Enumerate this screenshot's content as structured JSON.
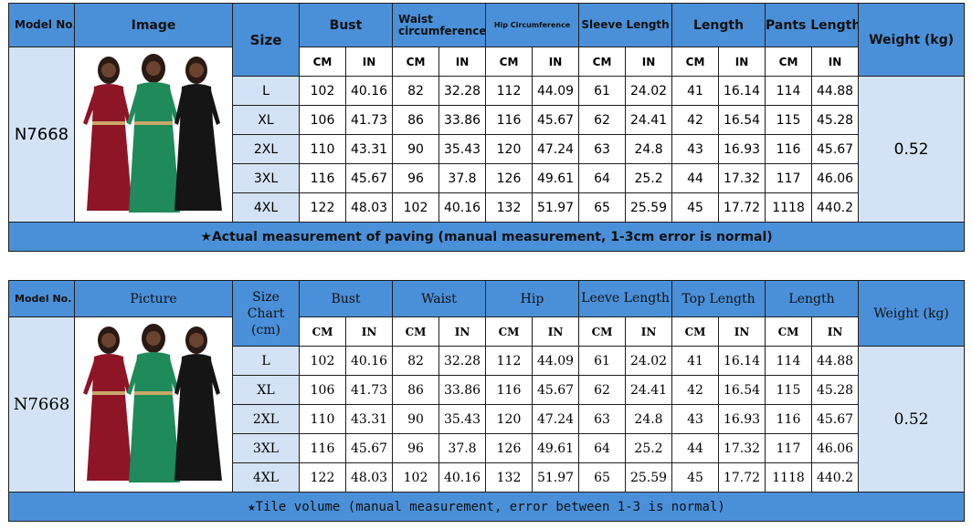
{
  "colors": {
    "header_blue": "#4a90d9",
    "light_blue": "#d3e3f5",
    "dress_red": "#8e1526",
    "dress_green": "#1f8a5a",
    "dress_black": "#151515"
  },
  "table1": {
    "model_label": "Model No.",
    "image_label": "Image",
    "size_label": "Size",
    "groups": [
      "Bust",
      "Waist circumference",
      "Hip Circumference",
      "Sleeve Length",
      "Length",
      "Pants Length"
    ],
    "weight_label": "Weight (kg)",
    "units": [
      "CM",
      "IN"
    ],
    "model": "N7668",
    "weight": "0.52",
    "rows": [
      {
        "size": "L",
        "cells": [
          "102",
          "40.16",
          "82",
          "32.28",
          "112",
          "44.09",
          "61",
          "24.02",
          "41",
          "16.14",
          "114",
          "44.88"
        ]
      },
      {
        "size": "XL",
        "cells": [
          "106",
          "41.73",
          "86",
          "33.86",
          "116",
          "45.67",
          "62",
          "24.41",
          "42",
          "16.54",
          "115",
          "45.28"
        ]
      },
      {
        "size": "2XL",
        "cells": [
          "110",
          "43.31",
          "90",
          "35.43",
          "120",
          "47.24",
          "63",
          "24.8",
          "43",
          "16.93",
          "116",
          "45.67"
        ]
      },
      {
        "size": "3XL",
        "cells": [
          "116",
          "45.67",
          "96",
          "37.8",
          "126",
          "49.61",
          "64",
          "25.2",
          "44",
          "17.32",
          "117",
          "46.06"
        ]
      },
      {
        "size": "4XL",
        "cells": [
          "122",
          "48.03",
          "102",
          "40.16",
          "132",
          "51.97",
          "65",
          "25.59",
          "45",
          "17.72",
          "1118",
          "440.2"
        ]
      }
    ],
    "footer": "★Actual measurement of paving (manual measurement, 1-3cm error is normal)"
  },
  "table2": {
    "model_label": "Model No.",
    "image_label": "Picture",
    "size_label": "Size Chart (cm)",
    "groups": [
      "Bust",
      "Waist",
      "Hip",
      "Leeve Length",
      "Top Length",
      "Length"
    ],
    "weight_label": "Weight (kg)",
    "units": [
      "CM",
      "IN"
    ],
    "model": "N7668",
    "weight": "0.52",
    "rows": [
      {
        "size": "L",
        "cells": [
          "102",
          "40.16",
          "82",
          "32.28",
          "112",
          "44.09",
          "61",
          "24.02",
          "41",
          "16.14",
          "114",
          "44.88"
        ]
      },
      {
        "size": "XL",
        "cells": [
          "106",
          "41.73",
          "86",
          "33.86",
          "116",
          "45.67",
          "62",
          "24.41",
          "42",
          "16.54",
          "115",
          "45.28"
        ]
      },
      {
        "size": "2XL",
        "cells": [
          "110",
          "43.31",
          "90",
          "35.43",
          "120",
          "47.24",
          "63",
          "24.8",
          "43",
          "16.93",
          "116",
          "45.67"
        ]
      },
      {
        "size": "3XL",
        "cells": [
          "116",
          "45.67",
          "96",
          "37.8",
          "126",
          "49.61",
          "64",
          "25.2",
          "44",
          "17.32",
          "117",
          "46.06"
        ]
      },
      {
        "size": "4XL",
        "cells": [
          "122",
          "48.03",
          "102",
          "40.16",
          "132",
          "51.97",
          "65",
          "25.59",
          "45",
          "17.72",
          "1118",
          "440.2"
        ]
      }
    ],
    "footer": "★Tile volume (manual measurement, error between 1-3 is normal)"
  }
}
